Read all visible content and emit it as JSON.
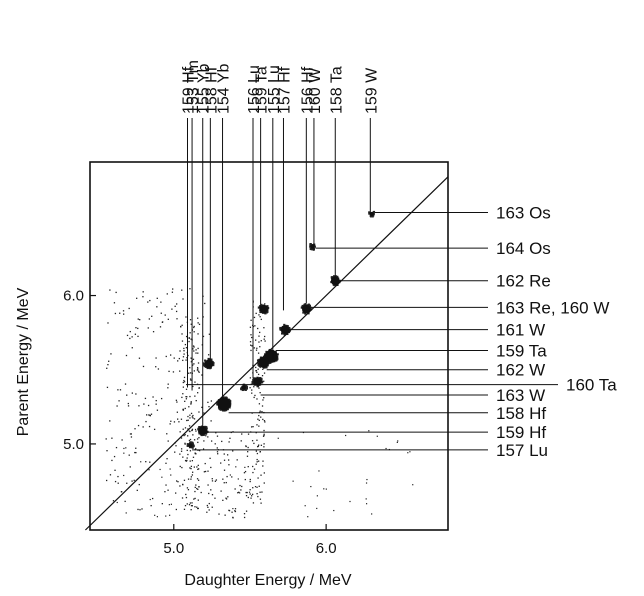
{
  "chart_data": {
    "type": "scatter",
    "title": "",
    "xlabel": "Daughter Energy / MeV",
    "ylabel": "Parent Energy / MeV",
    "xlim": [
      4.45,
      6.8
    ],
    "ylim": [
      4.42,
      6.9
    ],
    "x_ticks": [
      {
        "value": 5.0,
        "label": "5.0"
      },
      {
        "value": 6.0,
        "label": "6.0"
      }
    ],
    "y_ticks": [
      {
        "value": 5.0,
        "label": "5.0"
      },
      {
        "value": 6.0,
        "label": "6.0"
      }
    ],
    "diagonal": {
      "from": [
        4.42,
        4.42
      ],
      "to": [
        6.8,
        6.8
      ],
      "meaning": "parent energy equals daughter energy"
    },
    "clusters": [
      {
        "x": 6.3,
        "y": 6.55,
        "label": "163 Os",
        "weight": 1
      },
      {
        "x": 5.91,
        "y": 6.33,
        "label": "164 Os",
        "weight": 1
      },
      {
        "x": 6.06,
        "y": 6.1,
        "label": "162 Re",
        "weight": 3
      },
      {
        "x": 5.87,
        "y": 5.91,
        "label": "163 Re, 160 W",
        "weight": 3
      },
      {
        "x": 5.73,
        "y": 5.77,
        "label": "161 W",
        "weight": 3
      },
      {
        "x": 5.64,
        "y": 5.59,
        "label": "159 Ta",
        "weight": 5
      },
      {
        "x": 5.59,
        "y": 5.55,
        "label": "162 W",
        "weight": 4
      },
      {
        "x": 5.55,
        "y": 5.42,
        "label": "163 W",
        "weight": 3
      },
      {
        "x": 5.33,
        "y": 5.27,
        "label": "158 Hf",
        "weight": 5
      },
      {
        "x": 5.19,
        "y": 5.09,
        "label": "159 Hf",
        "weight": 3
      },
      {
        "x": 5.11,
        "y": 4.99,
        "label": "157 Lu",
        "weight": 1
      },
      {
        "x": 5.23,
        "y": 5.54,
        "label": "",
        "weight": 3
      },
      {
        "x": 5.59,
        "y": 5.91,
        "label": "",
        "weight": 3
      },
      {
        "x": 5.46,
        "y": 5.38,
        "label": "",
        "weight": 1
      }
    ],
    "right_labels": [
      {
        "label": "163 Os",
        "y": 6.56
      },
      {
        "label": "164 Os",
        "y": 6.32
      },
      {
        "label": "162 Re",
        "y": 6.1
      },
      {
        "label": "163 Re, 160 W",
        "y": 5.92
      },
      {
        "label": "161 W",
        "y": 5.77
      },
      {
        "label": "159 Ta",
        "y": 5.63
      },
      {
        "label": "162 W",
        "y": 5.5
      },
      {
        "label": "160 Ta",
        "y": 5.4
      },
      {
        "label": "163 W",
        "y": 5.33
      },
      {
        "label": "158 Hf",
        "y": 5.21
      },
      {
        "label": "159 Hf",
        "y": 5.08
      },
      {
        "label": "157 Lu",
        "y": 4.96
      }
    ],
    "top_labels": [
      {
        "label": "159 Hf",
        "x": 5.09
      },
      {
        "label": "153 Tm",
        "x": 5.12
      },
      {
        "label": "155 Yb",
        "x": 5.19
      },
      {
        "label": "158 Hf",
        "x": 5.24
      },
      {
        "label": "154 Yb",
        "x": 5.32
      },
      {
        "label": "156 Lu",
        "x": 5.52
      },
      {
        "label": "159 Ta",
        "x": 5.57
      },
      {
        "label": "155 Lu",
        "x": 5.65
      },
      {
        "label": "157 Hf",
        "x": 5.72
      },
      {
        "label": "156 Hf",
        "x": 5.87
      },
      {
        "label": "160 W",
        "x": 5.92
      },
      {
        "label": "158 Ta",
        "x": 6.06
      },
      {
        "label": "159 W",
        "x": 6.29
      }
    ]
  }
}
